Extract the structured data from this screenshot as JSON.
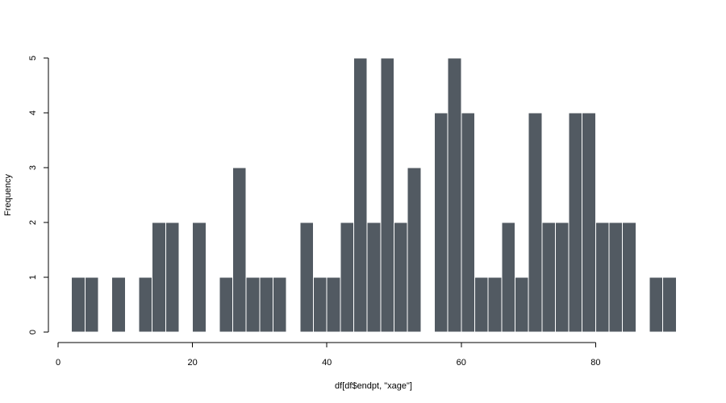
{
  "chart_data": {
    "type": "bar",
    "title": "",
    "xlabel": "df[df$endpt, \"xage\"]",
    "ylabel": "Frequency",
    "bin_width": 2,
    "x_bin_starts": [
      2,
      4,
      6,
      8,
      10,
      12,
      14,
      16,
      18,
      20,
      22,
      24,
      26,
      28,
      30,
      32,
      34,
      36,
      38,
      40,
      42,
      44,
      46,
      48,
      50,
      52,
      54,
      56,
      58,
      60,
      62,
      64,
      66,
      68,
      70,
      72,
      74,
      76,
      78,
      80,
      82,
      84,
      86,
      88,
      90
    ],
    "values": [
      1,
      1,
      0,
      1,
      0,
      1,
      2,
      2,
      0,
      2,
      0,
      1,
      3,
      1,
      1,
      1,
      0,
      2,
      1,
      1,
      2,
      5,
      2,
      5,
      2,
      3,
      0,
      4,
      5,
      4,
      1,
      1,
      2,
      1,
      4,
      2,
      2,
      4,
      4,
      2,
      2,
      2,
      0,
      1,
      1
    ],
    "xlim": [
      2,
      92
    ],
    "ylim": [
      0,
      5
    ],
    "x_ticks": [
      0,
      20,
      40,
      60,
      80
    ],
    "y_ticks": [
      0,
      1,
      2,
      3,
      4,
      5
    ],
    "bar_color": "#525a62",
    "grid": false
  }
}
